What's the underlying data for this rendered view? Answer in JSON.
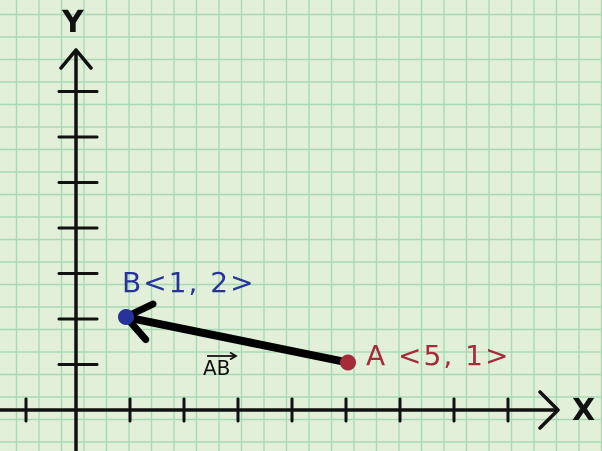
{
  "axes": {
    "x_label": "X",
    "y_label": "Y"
  },
  "points": {
    "a": {
      "label": "A <5, 1>",
      "x": 5,
      "y": 1,
      "color": "#a52a3a"
    },
    "b": {
      "label": "B<1, 2>",
      "x": 1,
      "y": 2,
      "color": "#27339a"
    }
  },
  "vector": {
    "label": "AB",
    "from": "A",
    "to": "B",
    "color": "#000000"
  },
  "colors": {
    "background": "#e2f0d9",
    "grid_line": "#a8d9b4",
    "axis": "#111111"
  }
}
